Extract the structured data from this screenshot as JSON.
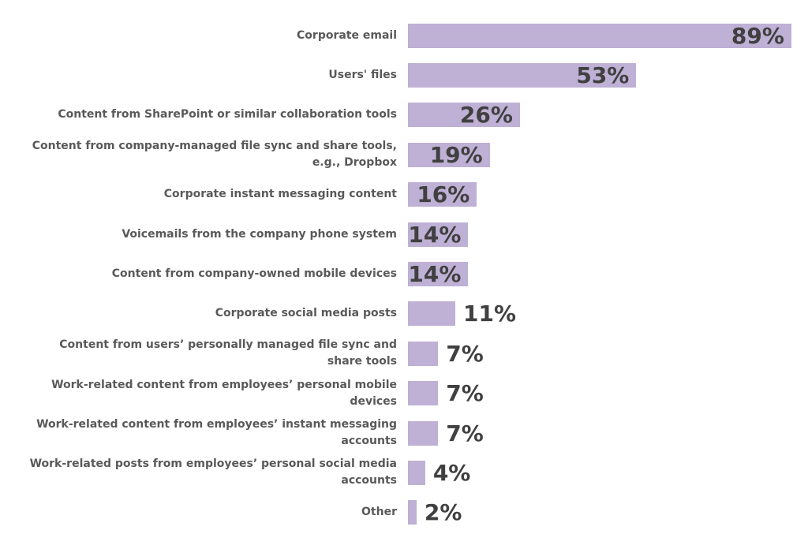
{
  "chart_data": {
    "type": "bar",
    "orientation": "horizontal",
    "title": "",
    "xlabel": "",
    "ylabel": "",
    "xlim": [
      0,
      100
    ],
    "grid": false,
    "legend": false,
    "bar_color": "#bfb0d5",
    "category_label_color": "#595959",
    "value_label_color": "#404040",
    "background_color": "#ffffff",
    "categories": [
      "Corporate email",
      "Users' files",
      "Content from SharePoint or similar collaboration tools",
      "Content from company-managed file sync and share tools,\ne.g., Dropbox",
      "Corporate instant messaging content",
      "Voicemails from the company phone system",
      "Content from company-owned mobile devices",
      "Corporate social media posts",
      "Content from users’ personally managed file sync and\nshare tools",
      "Work-related content from employees’ personal mobile\ndevices",
      "Work-related content from employees’ instant messaging\naccounts",
      "Work-related posts from employees’ personal social media\naccounts",
      "Other"
    ],
    "values": [
      89,
      53,
      26,
      19,
      16,
      14,
      14,
      11,
      7,
      7,
      7,
      4,
      2
    ],
    "value_labels": [
      "89%",
      "53%",
      "26%",
      "19%",
      "16%",
      "14%",
      "14%",
      "11%",
      "7%",
      "7%",
      "7%",
      "4%",
      "2%"
    ]
  }
}
